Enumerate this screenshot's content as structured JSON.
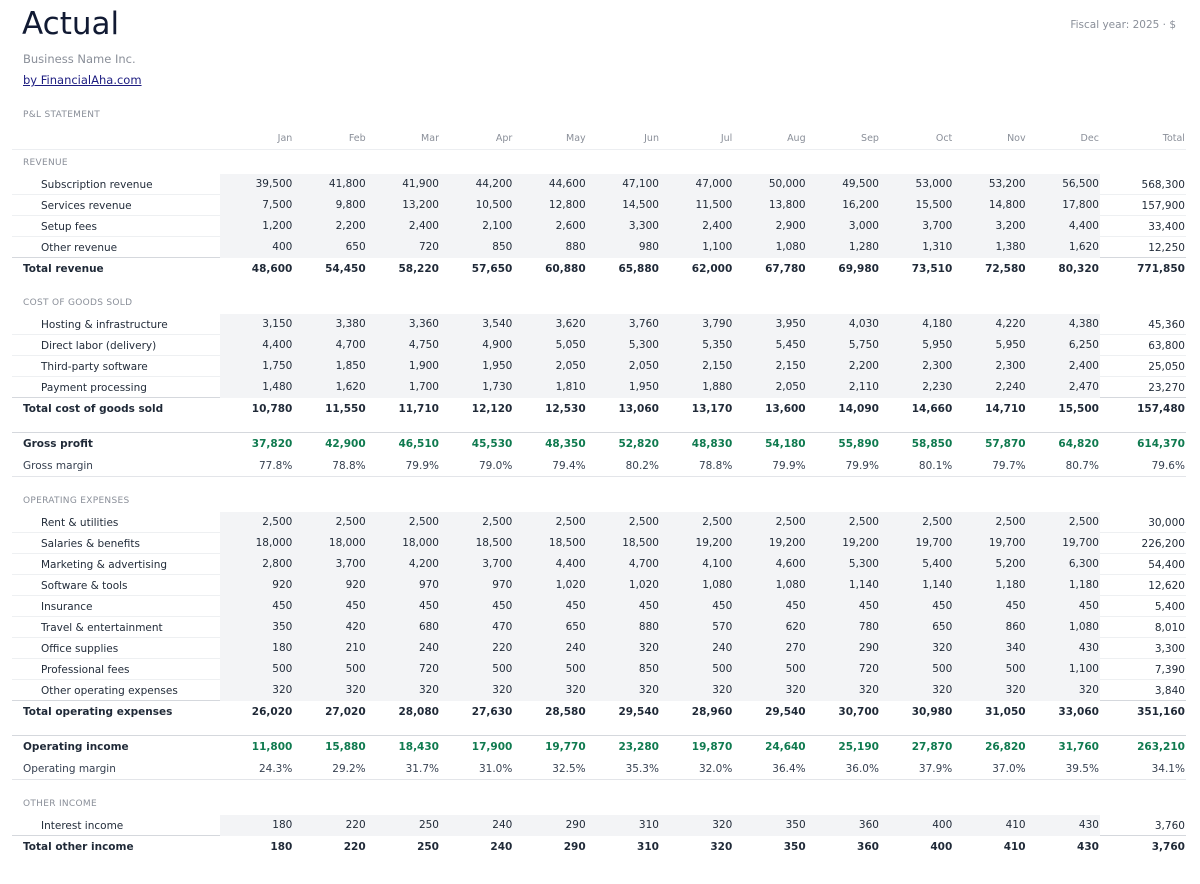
{
  "header": {
    "title": "Actual",
    "business": "Business Name Inc.",
    "link": "by FinancialAha.com",
    "fiscal": "Fiscal year: 2025 · $",
    "statement": "P&L STATEMENT"
  },
  "colors": {
    "positive": "#0f7a4f",
    "cell_bg": "#f3f4f6"
  },
  "columns": [
    "",
    "Jan",
    "Feb",
    "Mar",
    "Apr",
    "May",
    "Jun",
    "Jul",
    "Aug",
    "Sep",
    "Oct",
    "Nov",
    "Dec",
    "Total"
  ],
  "rows": [
    {
      "type": "sec",
      "label": "REVENUE"
    },
    {
      "type": "item",
      "label": "Subscription revenue",
      "values": [
        "39,500",
        "41,800",
        "41,900",
        "44,200",
        "44,600",
        "47,100",
        "47,000",
        "50,000",
        "49,500",
        "53,000",
        "53,200",
        "56,500",
        "568,300"
      ]
    },
    {
      "type": "item",
      "label": "Services revenue",
      "values": [
        "7,500",
        "9,800",
        "13,200",
        "10,500",
        "12,800",
        "14,500",
        "11,500",
        "13,800",
        "16,200",
        "15,500",
        "14,800",
        "17,800",
        "157,900"
      ]
    },
    {
      "type": "item",
      "label": "Setup fees",
      "values": [
        "1,200",
        "2,200",
        "2,400",
        "2,100",
        "2,600",
        "3,300",
        "2,400",
        "2,900",
        "3,000",
        "3,700",
        "3,200",
        "4,400",
        "33,400"
      ]
    },
    {
      "type": "item",
      "label": "Other revenue",
      "values": [
        "400",
        "650",
        "720",
        "850",
        "880",
        "980",
        "1,100",
        "1,080",
        "1,280",
        "1,310",
        "1,380",
        "1,620",
        "12,250"
      ]
    },
    {
      "type": "total",
      "label": "Total revenue",
      "values": [
        "48,600",
        "54,450",
        "58,220",
        "57,650",
        "60,880",
        "65,880",
        "62,000",
        "67,780",
        "69,980",
        "73,510",
        "72,580",
        "80,320",
        "771,850"
      ]
    },
    {
      "type": "sec",
      "label": "COST OF GOODS SOLD"
    },
    {
      "type": "item",
      "label": "Hosting & infrastructure",
      "values": [
        "3,150",
        "3,380",
        "3,360",
        "3,540",
        "3,620",
        "3,760",
        "3,790",
        "3,950",
        "4,030",
        "4,180",
        "4,220",
        "4,380",
        "45,360"
      ]
    },
    {
      "type": "item",
      "label": "Direct labor (delivery)",
      "values": [
        "4,400",
        "4,700",
        "4,750",
        "4,900",
        "5,050",
        "5,300",
        "5,350",
        "5,450",
        "5,750",
        "5,950",
        "5,950",
        "6,250",
        "63,800"
      ]
    },
    {
      "type": "item",
      "label": "Third-party software",
      "values": [
        "1,750",
        "1,850",
        "1,900",
        "1,950",
        "2,050",
        "2,050",
        "2,150",
        "2,150",
        "2,200",
        "2,300",
        "2,300",
        "2,400",
        "25,050"
      ]
    },
    {
      "type": "item",
      "label": "Payment processing",
      "values": [
        "1,480",
        "1,620",
        "1,700",
        "1,730",
        "1,810",
        "1,950",
        "1,880",
        "2,050",
        "2,110",
        "2,230",
        "2,240",
        "2,470",
        "23,270"
      ]
    },
    {
      "type": "total",
      "label": "Total cost of goods sold",
      "values": [
        "10,780",
        "11,550",
        "11,710",
        "12,120",
        "12,530",
        "13,060",
        "13,170",
        "13,600",
        "14,090",
        "14,660",
        "14,710",
        "15,500",
        "157,480"
      ]
    },
    {
      "type": "key",
      "label": "Gross profit",
      "values": [
        "37,820",
        "42,900",
        "46,510",
        "45,530",
        "48,350",
        "52,820",
        "48,830",
        "54,180",
        "55,890",
        "58,850",
        "57,870",
        "64,820",
        "614,370"
      ]
    },
    {
      "type": "margin",
      "label": "Gross margin",
      "values": [
        "77.8%",
        "78.8%",
        "79.9%",
        "79.0%",
        "79.4%",
        "80.2%",
        "78.8%",
        "79.9%",
        "79.9%",
        "80.1%",
        "79.7%",
        "80.7%",
        "79.6%"
      ]
    },
    {
      "type": "sec",
      "label": "OPERATING EXPENSES"
    },
    {
      "type": "item",
      "label": "Rent & utilities",
      "values": [
        "2,500",
        "2,500",
        "2,500",
        "2,500",
        "2,500",
        "2,500",
        "2,500",
        "2,500",
        "2,500",
        "2,500",
        "2,500",
        "2,500",
        "30,000"
      ]
    },
    {
      "type": "item",
      "label": "Salaries & benefits",
      "values": [
        "18,000",
        "18,000",
        "18,000",
        "18,500",
        "18,500",
        "18,500",
        "19,200",
        "19,200",
        "19,200",
        "19,700",
        "19,700",
        "19,700",
        "226,200"
      ]
    },
    {
      "type": "item",
      "label": "Marketing & advertising",
      "values": [
        "2,800",
        "3,700",
        "4,200",
        "3,700",
        "4,400",
        "4,700",
        "4,100",
        "4,600",
        "5,300",
        "5,400",
        "5,200",
        "6,300",
        "54,400"
      ]
    },
    {
      "type": "item",
      "label": "Software & tools",
      "values": [
        "920",
        "920",
        "970",
        "970",
        "1,020",
        "1,020",
        "1,080",
        "1,080",
        "1,140",
        "1,140",
        "1,180",
        "1,180",
        "12,620"
      ]
    },
    {
      "type": "item",
      "label": "Insurance",
      "values": [
        "450",
        "450",
        "450",
        "450",
        "450",
        "450",
        "450",
        "450",
        "450",
        "450",
        "450",
        "450",
        "5,400"
      ]
    },
    {
      "type": "item",
      "label": "Travel & entertainment",
      "values": [
        "350",
        "420",
        "680",
        "470",
        "650",
        "880",
        "570",
        "620",
        "780",
        "650",
        "860",
        "1,080",
        "8,010"
      ]
    },
    {
      "type": "item",
      "label": "Office supplies",
      "values": [
        "180",
        "210",
        "240",
        "220",
        "240",
        "320",
        "240",
        "270",
        "290",
        "320",
        "340",
        "430",
        "3,300"
      ]
    },
    {
      "type": "item",
      "label": "Professional fees",
      "values": [
        "500",
        "500",
        "720",
        "500",
        "500",
        "850",
        "500",
        "500",
        "720",
        "500",
        "500",
        "1,100",
        "7,390"
      ]
    },
    {
      "type": "item",
      "label": "Other operating expenses",
      "values": [
        "320",
        "320",
        "320",
        "320",
        "320",
        "320",
        "320",
        "320",
        "320",
        "320",
        "320",
        "320",
        "3,840"
      ]
    },
    {
      "type": "total",
      "label": "Total operating expenses",
      "values": [
        "26,020",
        "27,020",
        "28,080",
        "27,630",
        "28,580",
        "29,540",
        "28,960",
        "29,540",
        "30,700",
        "30,980",
        "31,050",
        "33,060",
        "351,160"
      ]
    },
    {
      "type": "key",
      "label": "Operating income",
      "values": [
        "11,800",
        "15,880",
        "18,430",
        "17,900",
        "19,770",
        "23,280",
        "19,870",
        "24,640",
        "25,190",
        "27,870",
        "26,820",
        "31,760",
        "263,210"
      ]
    },
    {
      "type": "margin",
      "label": "Operating margin",
      "values": [
        "24.3%",
        "29.2%",
        "31.7%",
        "31.0%",
        "32.5%",
        "35.3%",
        "32.0%",
        "36.4%",
        "36.0%",
        "37.9%",
        "37.0%",
        "39.5%",
        "34.1%"
      ]
    },
    {
      "type": "sec",
      "label": "OTHER INCOME"
    },
    {
      "type": "item",
      "label": "Interest income",
      "values": [
        "180",
        "220",
        "250",
        "240",
        "290",
        "310",
        "320",
        "350",
        "360",
        "400",
        "410",
        "430",
        "3,760"
      ]
    },
    {
      "type": "total",
      "label": "Total other income",
      "values": [
        "180",
        "220",
        "250",
        "240",
        "290",
        "310",
        "320",
        "350",
        "360",
        "400",
        "410",
        "430",
        "3,760"
      ]
    }
  ]
}
